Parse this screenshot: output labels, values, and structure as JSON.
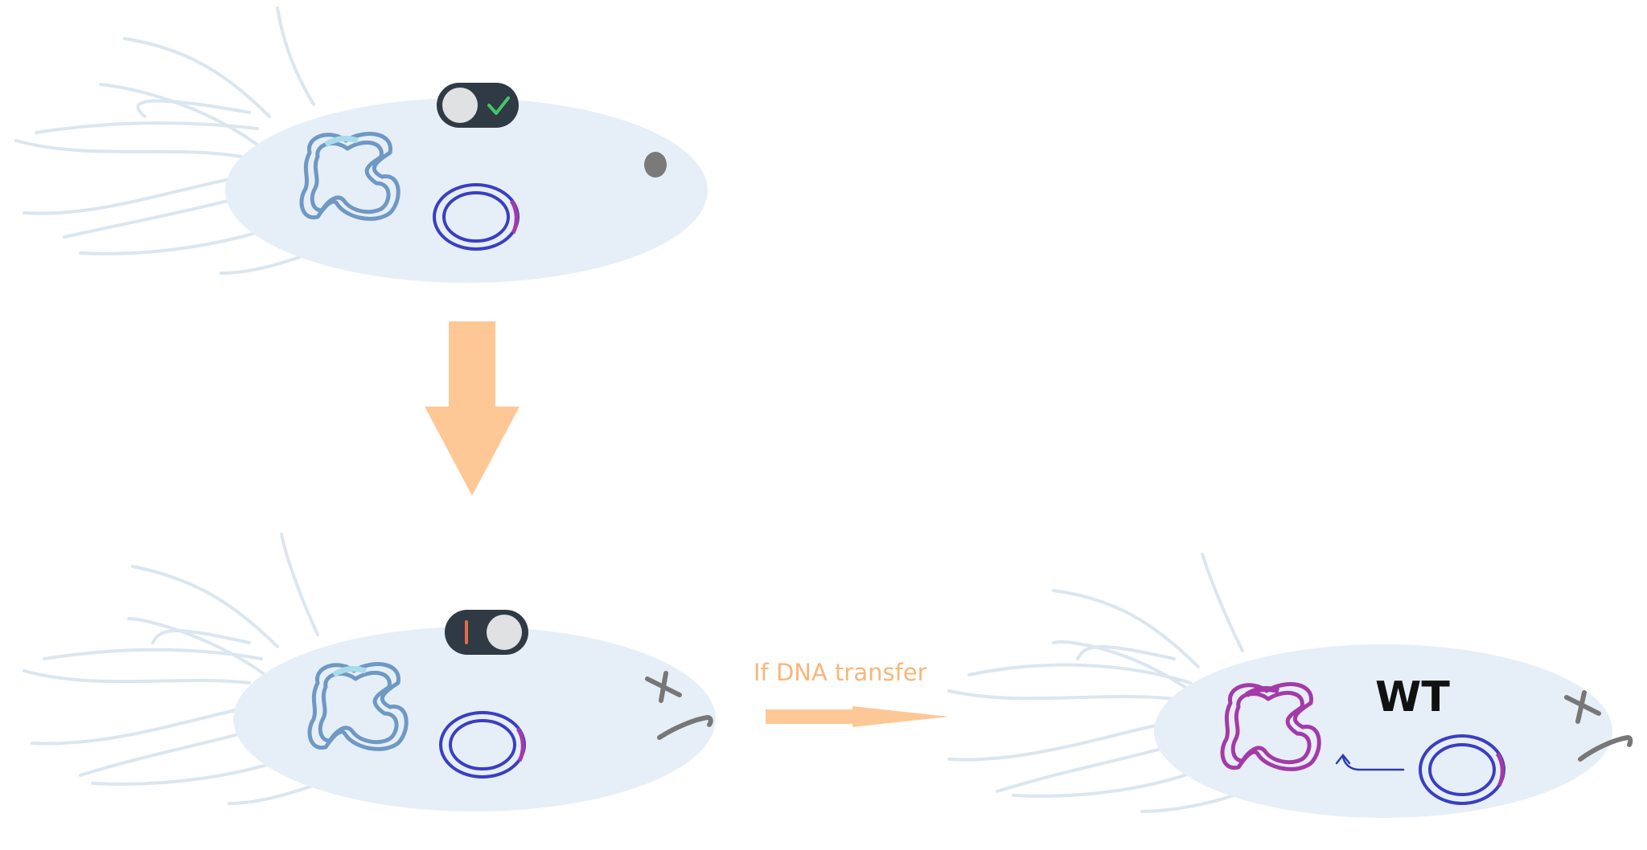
{
  "labels": {
    "transfer_label": "If DNA transfer",
    "wt_label": "WT"
  },
  "colors": {
    "background": "#ffffff",
    "cell_fill": "#e6eff7",
    "flagella": "#dbe6ef",
    "chromosome": "#6f98c4",
    "chromosome_highlight": "#a9dcea",
    "plasmid": "#3a3ec2",
    "plasmid_marker": "#a43aa8",
    "wt_chromosome": "#a43aa8",
    "arrow": "#fdc896",
    "transfer_text": "#f8b67a",
    "switch_body": "#2f3a44",
    "switch_knob": "#dfe1e3",
    "switch_check": "#43c766",
    "switch_off_mark": "#e56a48",
    "dot": "#7a7a7a",
    "degraded_fragments": "#777777",
    "small_arrow": "#2f3cae",
    "wt_text": "#111111"
  },
  "icons": [
    "toggle-on-icon",
    "toggle-off-icon",
    "check-icon",
    "down-arrow-icon",
    "right-arrow-icon",
    "small-curved-arrow-icon"
  ]
}
